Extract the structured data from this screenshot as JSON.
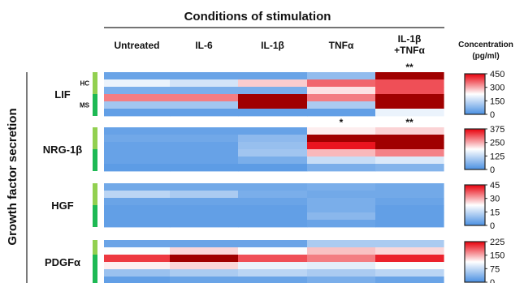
{
  "chart_data": {
    "type": "heatmap",
    "title": "Conditions of stimulation",
    "ylabel": "Growth factor secretion",
    "conditions": [
      "Untreated",
      "IL-6",
      "IL-1β",
      "TNFα",
      [
        "IL-1β",
        "+TNFα"
      ]
    ],
    "group_labels": [
      "HC",
      "MS"
    ],
    "scale_title": [
      "Concentration",
      "(pg/ml)"
    ],
    "colormap": {
      "low": "#4a90e2",
      "mid": "#ffffff",
      "high": "#e8000b",
      "max": "#a00000"
    },
    "panels": [
      {
        "name": "LIF",
        "show_groups": true,
        "scale_ticks": [
          0,
          150,
          300,
          450
        ],
        "vmax": 450,
        "significance": [
          "",
          "",
          "",
          "",
          "**"
        ],
        "groups": [
          {
            "group": "HC",
            "rows": [
              [
                40,
                40,
                40,
                90,
                560
              ],
              [
                200,
                170,
                270,
                360,
                380
              ],
              [
                60,
                60,
                60,
                250,
                380
              ]
            ]
          },
          {
            "group": "MS",
            "rows": [
              [
                340,
                340,
                560,
                340,
                560
              ],
              [
                110,
                110,
                560,
                120,
                560
              ],
              [
                30,
                30,
                30,
                30,
                200
              ]
            ]
          }
        ]
      },
      {
        "name": "NRG-1β",
        "show_groups": false,
        "scale_ticks": [
          0,
          125,
          250,
          375
        ],
        "vmax": 375,
        "significance": [
          "",
          "",
          "",
          "*",
          "**"
        ],
        "groups": [
          {
            "group": "HC",
            "rows": [
              [
                30,
                30,
                30,
                200,
                220
              ],
              [
                40,
                40,
                70,
                470,
                470
              ],
              [
                30,
                30,
                80,
                360,
                470
              ]
            ]
          },
          {
            "group": "MS",
            "rows": [
              [
                30,
                30,
                90,
                240,
                280
              ],
              [
                30,
                30,
                50,
                130,
                150
              ],
              [
                20,
                20,
                20,
                50,
                60
              ]
            ]
          }
        ]
      },
      {
        "name": "HGF",
        "show_groups": false,
        "scale_ticks": [
          0,
          15,
          30,
          45
        ],
        "vmax": 45,
        "significance": [
          "",
          "",
          "",
          "",
          ""
        ],
        "groups": [
          {
            "group": "HC",
            "rows": [
              [
                5,
                5,
                5,
                6,
                5
              ],
              [
                14,
                12,
                6,
                5,
                5
              ],
              [
                4,
                4,
                4,
                6,
                4
              ]
            ]
          },
          {
            "group": "MS",
            "rows": [
              [
                3,
                3,
                3,
                6,
                3
              ],
              [
                3,
                3,
                3,
                8,
                3
              ],
              [
                3,
                3,
                3,
                4,
                3
              ]
            ]
          }
        ]
      },
      {
        "name": "PDGFα",
        "show_groups": false,
        "scale_ticks": [
          0,
          75,
          150,
          225
        ],
        "vmax": 225,
        "significance": [
          "",
          "",
          "",
          "",
          ""
        ],
        "groups": [
          {
            "group": "HC",
            "rows": [
              [
                20,
                20,
                20,
                60,
                60
              ],
              [
                110,
                130,
                110,
                140,
                130
              ]
            ]
          },
          {
            "group": "MS",
            "rows": [
              [
                200,
                240,
                190,
                170,
                210
              ],
              [
                120,
                130,
                100,
                95,
                110
              ],
              [
                50,
                60,
                70,
                60,
                70
              ],
              [
                15,
                20,
                20,
                30,
                20
              ]
            ]
          }
        ]
      }
    ]
  }
}
